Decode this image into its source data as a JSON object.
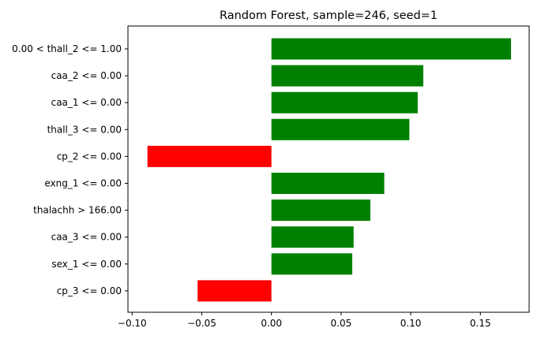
{
  "chart_data": {
    "type": "bar",
    "orientation": "horizontal",
    "title": "Random Forest, sample=246, seed=1",
    "xlabel": "",
    "ylabel": "",
    "categories": [
      "0.00 < thall_2 <= 1.00",
      "caa_2 <= 0.00",
      "caa_1 <= 0.00",
      "thall_3 <= 0.00",
      "cp_2 <= 0.00",
      "exng_1 <= 0.00",
      "thalachh > 166.00",
      "caa_3 <= 0.00",
      "sex_1 <= 0.00",
      "cp_3 <= 0.00"
    ],
    "values": [
      0.172,
      0.109,
      0.105,
      0.099,
      -0.089,
      0.081,
      0.071,
      0.059,
      0.058,
      -0.053
    ],
    "xlim": [
      -0.103,
      0.185
    ],
    "xticks": [
      -0.1,
      -0.05,
      0.0,
      0.05,
      0.1,
      0.15
    ],
    "xtick_labels": [
      "−0.10",
      "−0.05",
      "0.00",
      "0.05",
      "0.10",
      "0.15"
    ],
    "grid": false,
    "legend": "none",
    "colors": {
      "positive": "#008000",
      "negative": "#ff0000",
      "axis": "#000000"
    }
  }
}
